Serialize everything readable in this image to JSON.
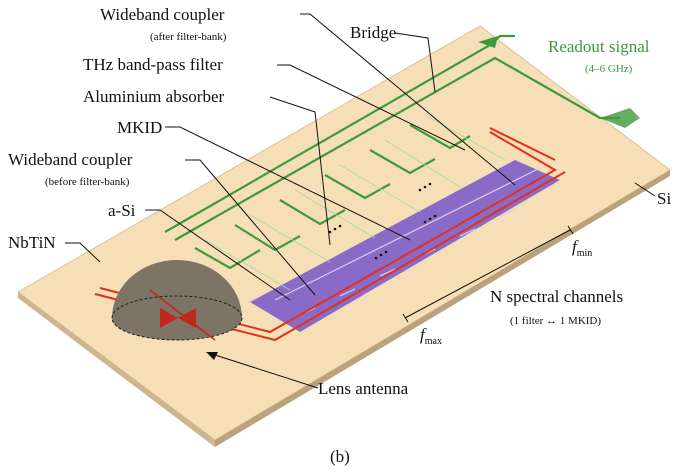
{
  "labels": {
    "coupler_after": {
      "title": "Wideband coupler",
      "note": "(after filter-bank)"
    },
    "bridge": "Bridge",
    "readout": {
      "title": "Readout signal",
      "note": "(4–6 GHz)"
    },
    "filter": "THz band-pass filter",
    "absorber": "Aluminium absorber",
    "mkid": "MKID",
    "coupler_before": {
      "title": "Wideband coupler",
      "note": "(before filter-bank)"
    },
    "si": "Si",
    "asi": "a-Si",
    "nbtin": "NbTiN",
    "f_min": {
      "symbol": "f",
      "sub": "min"
    },
    "channels": {
      "title": "N spectral channels",
      "note": "(1 filter ↔ 1 MKID)"
    },
    "f_max": {
      "symbol": "f",
      "sub": "max"
    },
    "lens": "Lens antenna"
  },
  "caption": "(b)"
}
